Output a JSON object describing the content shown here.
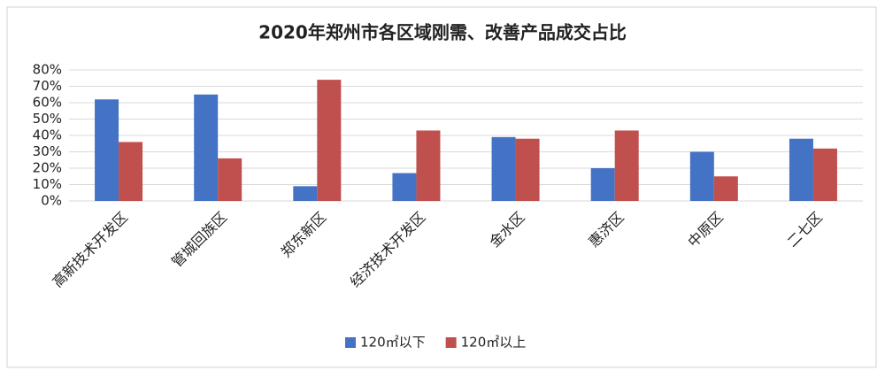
{
  "chart_data": {
    "type": "bar",
    "title": "2020年郑州市各区域刚需、改善产品成交占比",
    "categories": [
      "高新技术开发区",
      "管城回族区",
      "郑东新区",
      "经济技术开发区",
      "金水区",
      "惠济区",
      "中原区",
      "二七区"
    ],
    "series": [
      {
        "name": "120㎡以下",
        "color": "#4472c4",
        "values": [
          62,
          65,
          9,
          17,
          39,
          20,
          30,
          38
        ]
      },
      {
        "name": "120㎡以上",
        "color": "#c0504d",
        "values": [
          36,
          26,
          74,
          43,
          38,
          43,
          15,
          32
        ]
      }
    ],
    "ylim": [
      0,
      80
    ],
    "yticks": [
      {
        "value": 0,
        "label": "0%"
      },
      {
        "value": 10,
        "label": "10%"
      },
      {
        "value": 20,
        "label": "20%"
      },
      {
        "value": 30,
        "label": "30%"
      },
      {
        "value": 40,
        "label": "40%"
      },
      {
        "value": 50,
        "label": "50%"
      },
      {
        "value": 60,
        "label": "60%"
      },
      {
        "value": 70,
        "label": "70%"
      },
      {
        "value": 80,
        "label": "80%"
      }
    ],
    "grid": true,
    "legend": "bottom"
  }
}
